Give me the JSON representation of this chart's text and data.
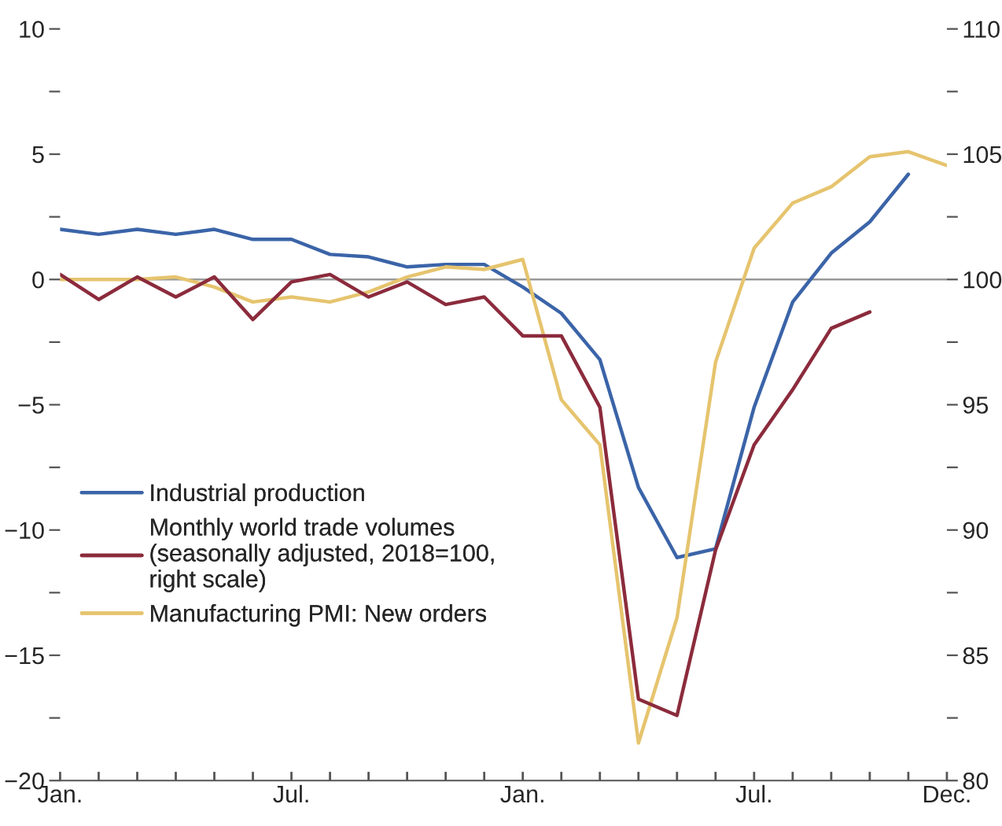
{
  "chart_data": {
    "type": "line",
    "categories": [
      "Jan.",
      null,
      null,
      null,
      null,
      null,
      "Jul.",
      null,
      null,
      null,
      null,
      null,
      "Jan.",
      null,
      null,
      null,
      null,
      null,
      "Jul.",
      null,
      null,
      null,
      null,
      "Dec."
    ],
    "series": [
      {
        "name": "Industrial production",
        "color": "#3b64a8",
        "values": [
          2.0,
          1.8,
          2.0,
          1.8,
          2.0,
          1.6,
          1.6,
          1.0,
          0.9,
          0.5,
          0.6,
          0.6,
          -0.3,
          -1.35,
          -3.2,
          -8.3,
          -11.1,
          -10.75,
          -5.1,
          -0.9,
          1.05,
          2.3,
          4.2,
          null
        ]
      },
      {
        "name": "Monthly world trade volumes\n(seasonally adjusted, 2018=100,\nright scale)",
        "color": "#8b2b3c",
        "axis": "y2",
        "values": [
          100.2,
          99.2,
          100.1,
          99.3,
          100.1,
          98.4,
          99.9,
          100.2,
          99.3,
          99.9,
          99.0,
          99.3,
          97.75,
          97.75,
          94.9,
          83.25,
          82.6,
          89.2,
          93.4,
          95.6,
          98.05,
          98.7,
          null,
          null
        ]
      },
      {
        "name": "Manufacturing PMI: New orders",
        "color": "#e6c46e",
        "values": [
          0.0,
          0.0,
          0.0,
          0.1,
          -0.3,
          -0.9,
          -0.7,
          -0.9,
          -0.5,
          0.1,
          0.5,
          0.4,
          0.8,
          -4.8,
          -6.6,
          -18.5,
          -13.5,
          -3.3,
          1.25,
          3.05,
          3.7,
          4.9,
          5.1,
          4.55
        ]
      }
    ],
    "ylim": [
      -20,
      10
    ],
    "yticks": [
      {
        "value": -20,
        "label": "−20"
      },
      {
        "value": -17.5,
        "label": null
      },
      {
        "value": -15,
        "label": "−15"
      },
      {
        "value": -12.5,
        "label": null
      },
      {
        "value": -10,
        "label": "−10"
      },
      {
        "value": -7.5,
        "label": null
      },
      {
        "value": -5,
        "label": "−5"
      },
      {
        "value": -2.5,
        "label": null
      },
      0,
      {
        "value": 2.5,
        "label": null
      },
      5,
      {
        "value": 7.5,
        "label": null
      },
      10
    ],
    "y2lim": [
      80,
      110
    ],
    "y2ticks": [
      80,
      {
        "value": 82.5,
        "label": null
      },
      85,
      {
        "value": 87.5,
        "label": null
      },
      90,
      {
        "value": 92.5,
        "label": null
      },
      95,
      {
        "value": 97.5,
        "label": null
      },
      100,
      {
        "value": 102.5,
        "label": null
      },
      105,
      {
        "value": 107.5,
        "label": null
      },
      110
    ],
    "ref_lines": [
      {
        "axis": "y",
        "value": 0,
        "color": "#999999"
      }
    ],
    "legend": "center left",
    "grid": false,
    "marker": "none",
    "line_style": "solid"
  }
}
